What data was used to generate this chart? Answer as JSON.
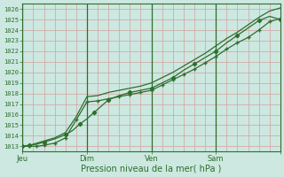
{
  "xlabel": "Pression niveau de la mer( hPa )",
  "background_color": "#cce8e0",
  "grid_color_minor": "#d4a0a0",
  "line_color": "#2d6e2d",
  "ylim": [
    1012.5,
    1026.5
  ],
  "xlim": [
    0,
    72
  ],
  "yticks": [
    1013,
    1014,
    1015,
    1016,
    1017,
    1018,
    1019,
    1020,
    1021,
    1022,
    1023,
    1024,
    1025,
    1026
  ],
  "xtick_positions": [
    0,
    18,
    36,
    54,
    72
  ],
  "xtick_labels": [
    "Jeu",
    "Dim",
    "Ven",
    "Sam",
    ""
  ],
  "vline_positions": [
    0,
    18,
    36,
    54
  ],
  "series1_x": [
    0,
    1,
    2,
    4,
    6,
    9,
    12,
    14,
    16,
    18,
    20,
    22,
    24,
    27,
    30,
    33,
    36,
    39,
    42,
    45,
    48,
    51,
    54,
    57,
    60,
    63,
    66,
    69,
    72
  ],
  "series1_y": [
    1013.0,
    1013.05,
    1013.1,
    1013.2,
    1013.4,
    1013.7,
    1014.1,
    1014.5,
    1015.1,
    1015.6,
    1016.2,
    1016.8,
    1017.4,
    1017.8,
    1018.1,
    1018.3,
    1018.5,
    1019.0,
    1019.5,
    1020.2,
    1020.8,
    1021.4,
    1022.0,
    1022.8,
    1023.5,
    1024.2,
    1024.9,
    1025.3,
    1025.0
  ],
  "series2_x": [
    0,
    2,
    4,
    6,
    9,
    12,
    15,
    18,
    21,
    24,
    27,
    30,
    33,
    36,
    39,
    42,
    45,
    48,
    51,
    54,
    57,
    60,
    63,
    66,
    69,
    72
  ],
  "series2_y": [
    1013.0,
    1013.0,
    1013.0,
    1013.1,
    1013.3,
    1013.8,
    1015.5,
    1017.2,
    1017.3,
    1017.5,
    1017.7,
    1017.9,
    1018.1,
    1018.3,
    1018.8,
    1019.3,
    1019.8,
    1020.3,
    1020.9,
    1021.5,
    1022.2,
    1022.8,
    1023.3,
    1024.0,
    1024.8,
    1025.1
  ],
  "series3_x": [
    0,
    2,
    4,
    6,
    9,
    12,
    15,
    18,
    21,
    24,
    27,
    30,
    33,
    36,
    39,
    42,
    45,
    48,
    51,
    54,
    57,
    60,
    63,
    66,
    69,
    72
  ],
  "series3_y": [
    1013.0,
    1013.1,
    1013.3,
    1013.5,
    1013.8,
    1014.3,
    1015.8,
    1017.7,
    1017.8,
    1018.1,
    1018.3,
    1018.5,
    1018.7,
    1019.0,
    1019.5,
    1020.0,
    1020.6,
    1021.2,
    1021.8,
    1022.5,
    1023.2,
    1023.8,
    1024.5,
    1025.2,
    1025.8,
    1026.1
  ]
}
